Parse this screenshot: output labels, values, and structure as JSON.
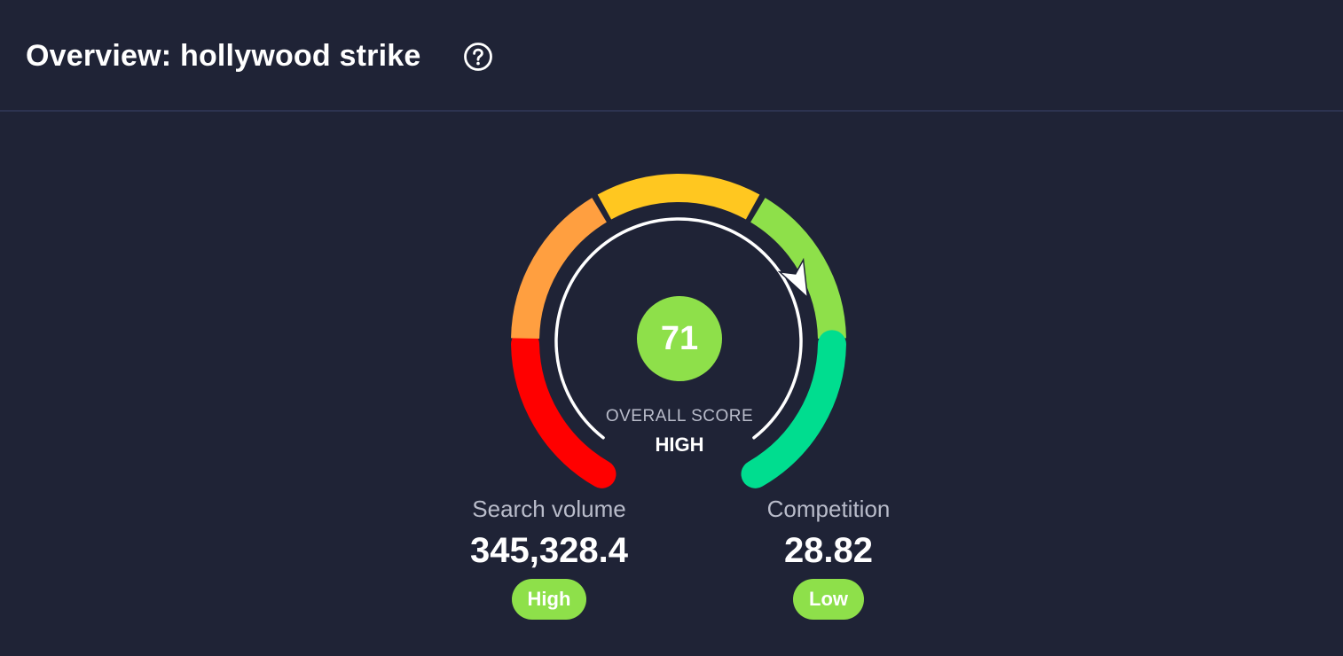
{
  "header": {
    "title": "Overview: hollywood strike",
    "help_icon": "question-circle-icon"
  },
  "gauge": {
    "score": "71",
    "score_fraction": 0.71,
    "label": "OVERALL SCORE",
    "rating": "HIGH",
    "segment_colors": [
      "#ff0000",
      "#ff9f40",
      "#ffc720",
      "#8ee04a",
      "#00dd8f"
    ],
    "score_color": "#8ee04a"
  },
  "metrics": {
    "search_volume": {
      "label": "Search volume",
      "value": "345,328.4",
      "badge": "High"
    },
    "competition": {
      "label": "Competition",
      "value": "28.82",
      "badge": "Low"
    }
  }
}
